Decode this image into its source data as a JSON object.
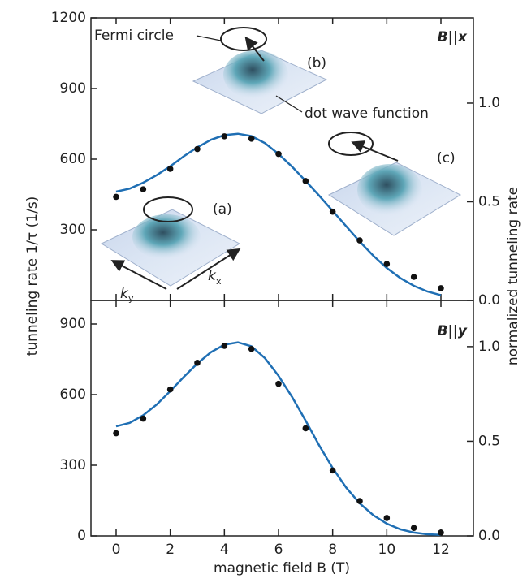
{
  "chart_data": [
    {
      "type": "line",
      "ylabel": "tunneling rate 1/τ (1/s)",
      "y2label": "normalized tunneling rate",
      "panel_label": "B||x",
      "xlim": [
        -0.93,
        13.2
      ],
      "xticks": [
        0,
        2,
        4,
        6,
        8,
        10,
        12
      ],
      "ylim": [
        0,
        1200
      ],
      "yticks": [
        300,
        600,
        900,
        1200
      ],
      "y2lim": [
        0,
        1.432
      ],
      "y2ticks": [
        {
          "value": 0,
          "label": "0.0"
        },
        {
          "value": 0.5,
          "label": "0.5"
        },
        {
          "value": 1,
          "label": "1.0"
        }
      ],
      "points": {
        "color": "#111111",
        "x": [
          0,
          1,
          2,
          3,
          4,
          5,
          6,
          7,
          8,
          9,
          10,
          11,
          12
        ],
        "values": [
          440,
          472,
          559,
          643,
          697,
          687,
          622,
          507,
          377,
          255,
          155,
          100,
          52
        ]
      },
      "fit": {
        "color": "#1f6fb4",
        "x": [
          0,
          0.5,
          1,
          1.5,
          2,
          2.5,
          3,
          3.5,
          4,
          4.5,
          5,
          5.5,
          6,
          6.5,
          7,
          7.5,
          8,
          8.5,
          9,
          9.5,
          10,
          10.5,
          11,
          11.5,
          12
        ],
        "values": [
          462,
          475,
          500,
          532,
          570,
          612,
          650,
          682,
          702,
          708,
          698,
          668,
          622,
          568,
          508,
          445,
          380,
          315,
          250,
          190,
          138,
          95,
          62,
          38,
          22
        ]
      },
      "annotations": [
        "Fermi circle",
        "(b)",
        "dot wave function",
        "(c)",
        "(a)",
        "k",
        "y",
        "k",
        "x"
      ]
    },
    {
      "type": "line",
      "xlabel": "magnetic field B (T)",
      "panel_label": "B||y",
      "xlim": [
        -0.93,
        13.2
      ],
      "xticks": [
        0,
        2,
        4,
        6,
        8,
        10,
        12
      ],
      "ylim": [
        0,
        1000
      ],
      "yticks": [
        0,
        300,
        600,
        900
      ],
      "y2lim": [
        0,
        1.244
      ],
      "y2ticks": [
        {
          "value": 0,
          "label": "0.0"
        },
        {
          "value": 0.5,
          "label": "0.5"
        },
        {
          "value": 1,
          "label": "1.0"
        }
      ],
      "points": {
        "color": "#111111",
        "x": [
          0,
          1,
          2,
          3,
          4,
          5,
          6,
          7,
          8,
          9,
          10,
          11,
          12
        ],
        "values": [
          436,
          498,
          622,
          735,
          807,
          794,
          646,
          457,
          278,
          148,
          76,
          34,
          14
        ]
      },
      "fit": {
        "color": "#1f6fb4",
        "x": [
          0,
          0.5,
          1,
          1.5,
          2,
          2.5,
          3,
          3.5,
          4,
          4.5,
          5,
          5.5,
          6,
          6.5,
          7,
          7.5,
          8,
          8.5,
          9,
          9.5,
          10,
          10.5,
          11,
          11.5,
          12
        ],
        "values": [
          465,
          480,
          512,
          558,
          615,
          675,
          732,
          780,
          812,
          822,
          805,
          755,
          680,
          590,
          490,
          385,
          288,
          205,
          138,
          88,
          52,
          28,
          14,
          7,
          4
        ]
      }
    }
  ]
}
